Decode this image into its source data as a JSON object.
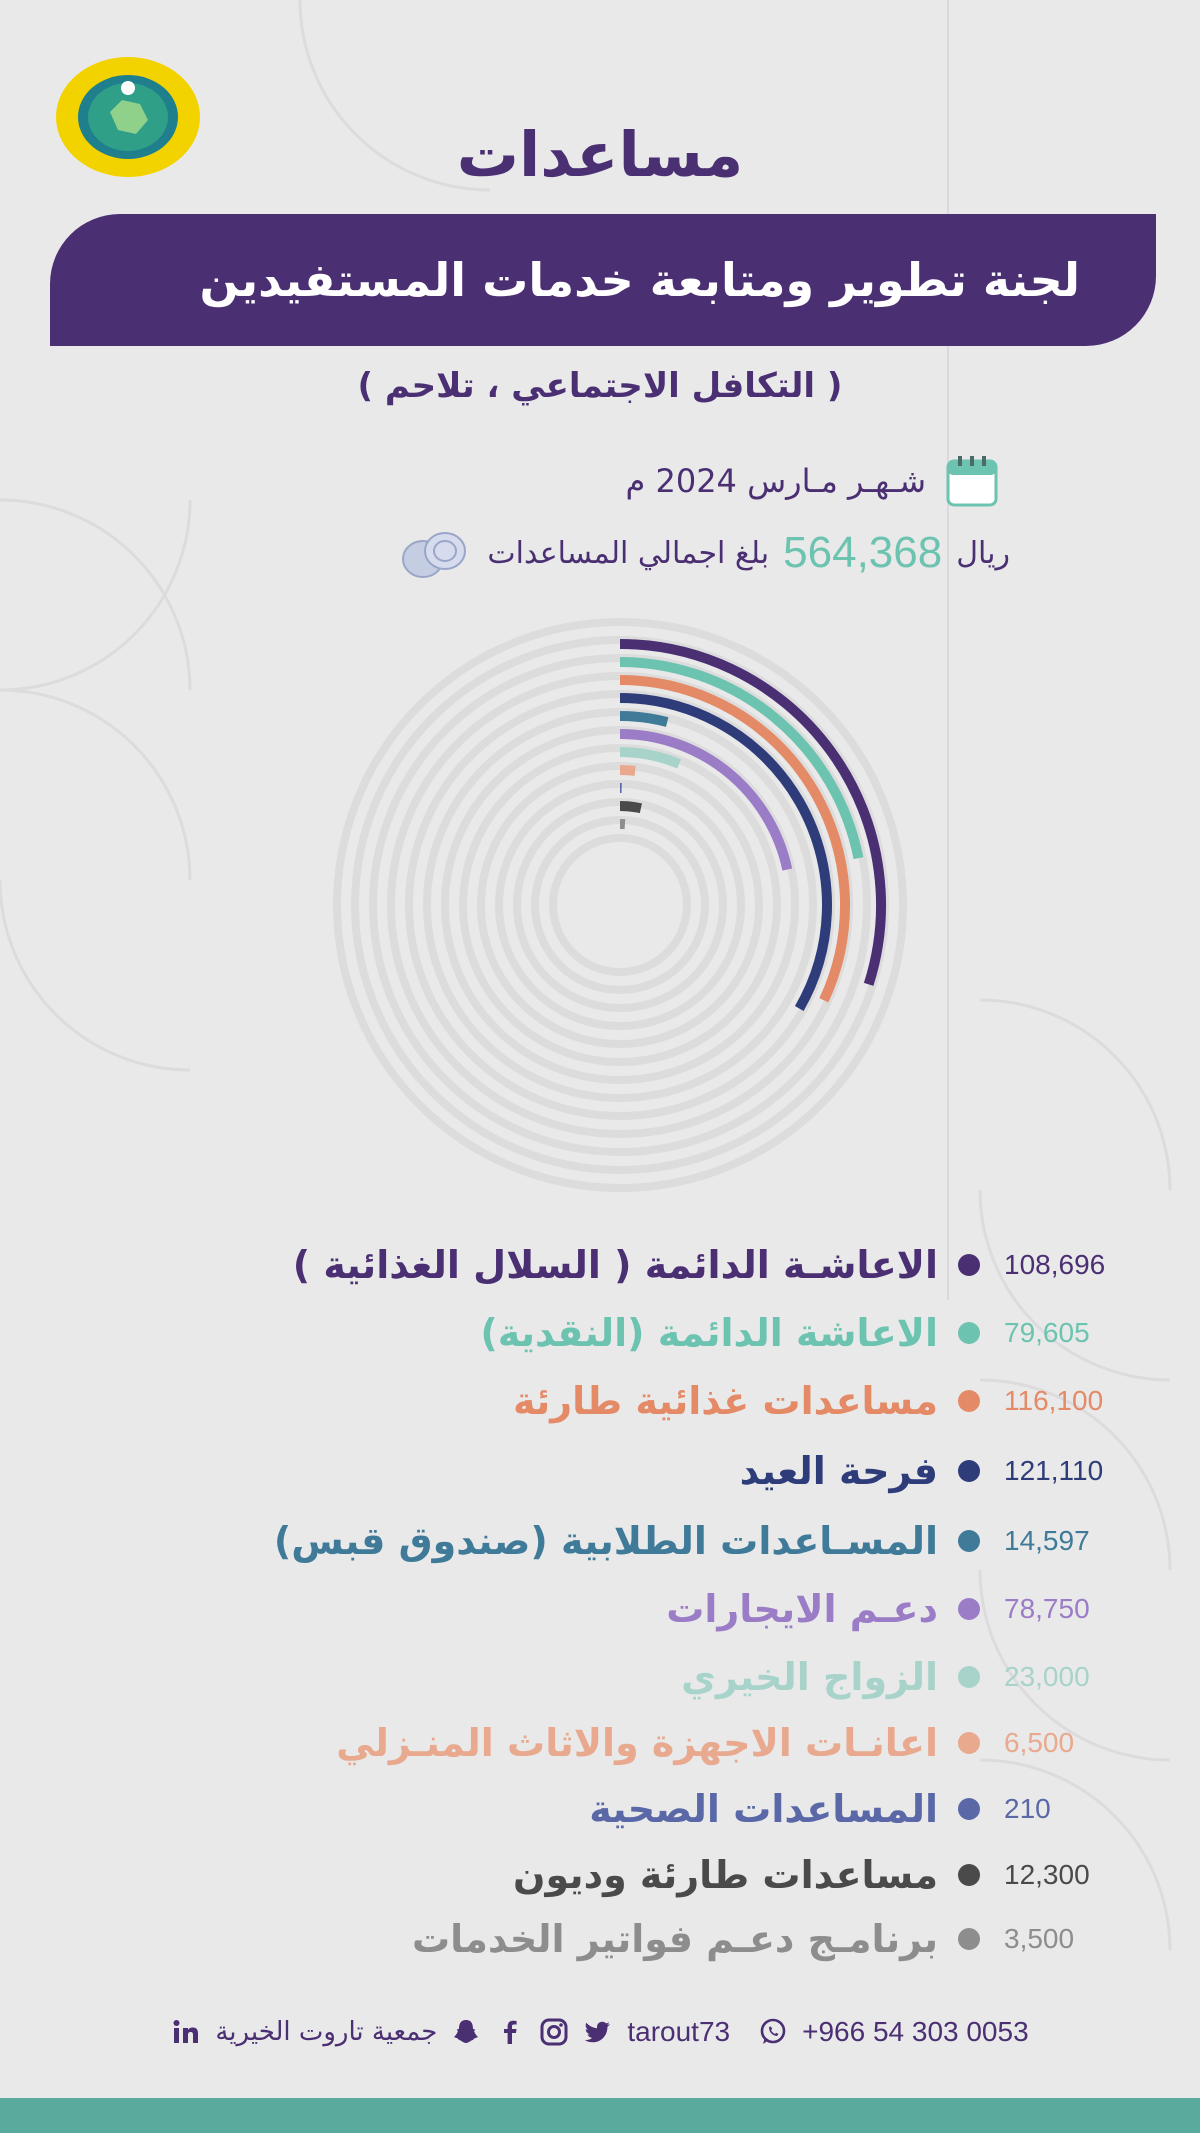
{
  "header": {
    "title": "مساعدات",
    "banner": "لجنة تطوير ومتابعة خدمات المستفيدين",
    "subtitle": "( التكافل الاجتماعي ، تلاحم )",
    "month": "شـهـر مـارس 2024 م",
    "total_label": "بلغ اجمالي المساعدات",
    "total_value": "564,368",
    "currency": "ريال"
  },
  "icons": {
    "calendar": "calendar-icon",
    "coins": "coins-icon",
    "logo": "association-logo-seal"
  },
  "colors": {
    "brand_purple": "#4b2f73",
    "teal": "#6cc3b0",
    "footer_bar": "#5aab9e"
  },
  "chart_data": {
    "type": "radial-bar",
    "series": [
      {
        "label": "الاعاشـة الدائمة ( السلال الغذائية )",
        "value": 108696,
        "value_text": "108,696",
        "color": "#4b2f73"
      },
      {
        "label": "الاعاشة الدائمة (النقدية)",
        "value": 79605,
        "value_text": "79,605",
        "color": "#6cc3b0"
      },
      {
        "label": "مساعدات غذائية طارئة",
        "value": 116100,
        "value_text": "116,100",
        "color": "#e48a66"
      },
      {
        "label": "فرحة العيد",
        "value": 121110,
        "value_text": "121,110",
        "color": "#2e3c7a"
      },
      {
        "label": "المسـاعدات الطلابية (صندوق قبس)",
        "value": 14597,
        "value_text": "14,597",
        "color": "#3f7b99"
      },
      {
        "label": "دعـم الايجارات",
        "value": 78750,
        "value_text": "78,750",
        "color": "#9b7cc6"
      },
      {
        "label": "الزواج الخيري",
        "value": 23000,
        "value_text": "23,000",
        "color": "#a8d3ca"
      },
      {
        "label": "اعانـات الاجهزة والاثاث المنـزلي",
        "value": 6500,
        "value_text": "6,500",
        "color": "#e8a98e"
      },
      {
        "label": "المساعدات الصحية",
        "value": 210,
        "value_text": "210",
        "color": "#5a68a8"
      },
      {
        "label": "مساعدات طارئة وديون",
        "value": 12300,
        "value_text": "12,300",
        "color": "#4a4a4a"
      },
      {
        "label": "برنامـج دعـم فواتير الخدمات",
        "value": 3500,
        "value_text": "3,500",
        "color": "#8d8d8d"
      }
    ]
  },
  "footer": {
    "phone": "+966 54 303 0053",
    "handle": "tarout73",
    "org_name": "جمعية تاروت الخيرية"
  }
}
